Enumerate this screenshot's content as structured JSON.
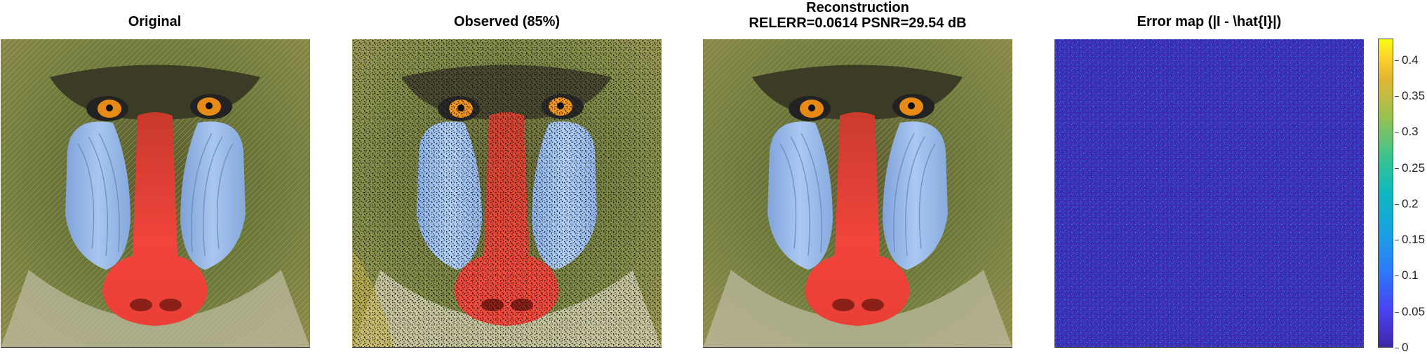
{
  "titles": {
    "original": "Original",
    "observed": "Observed (85%)",
    "reconstruction_line1": "Reconstruction",
    "reconstruction_line2": "RELERR=0.0614  PSNR=29.54 dB",
    "error_map": "Error map (|I - \\hat{I}|)"
  },
  "colorbar": {
    "colormap": "parula",
    "ticks": [
      "0",
      "0.05",
      "0.1",
      "0.15",
      "0.2",
      "0.25",
      "0.3",
      "0.35",
      "0.4"
    ],
    "min": 0,
    "max": 0.43
  },
  "colors": {
    "fur": "#6f7a3a",
    "nose_red": "#f0403a",
    "cheek_blue": "#93b6ea",
    "eye_orange": "#e88a16",
    "error_bg": "#3b2fb5"
  },
  "observed_fraction": 0.85
}
